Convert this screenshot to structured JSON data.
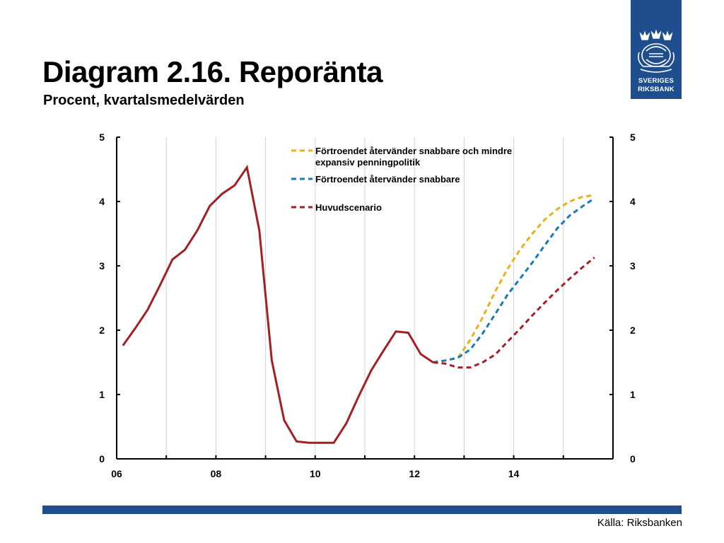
{
  "slide": {
    "title": "Diagram 2.16. Reporänta",
    "subtitle": "Procent, kvartalsmedelvärden",
    "source": "Källa: Riksbanken",
    "logo": {
      "line1": "SVERIGES",
      "line2": "RIKSBANK",
      "icon": "crown-seal-icon"
    }
  },
  "colors": {
    "brand_blue": "#1f4e8f",
    "series_main": "#a31f24",
    "series_fast": "#1a7ab5",
    "series_fast_expansive": "#e8b01a",
    "grid": "#d0d0d0"
  },
  "chart_data": {
    "type": "line",
    "title": "Diagram 2.16. Reporänta",
    "subtitle": "Procent, kvartalsmedelvärden",
    "xlabel": "",
    "ylabel": "",
    "x_range": [
      2006,
      2016
    ],
    "ylim": [
      0,
      5
    ],
    "y_ticks": [
      "0",
      "1",
      "2",
      "3",
      "4",
      "5"
    ],
    "right_y_ticks": [
      "0",
      "1",
      "2",
      "3",
      "4",
      "5"
    ],
    "x_ticks": [
      {
        "x": 2006,
        "label": "06"
      },
      {
        "x": 2008,
        "label": "08"
      },
      {
        "x": 2010,
        "label": "10"
      },
      {
        "x": 2012,
        "label": "12"
      },
      {
        "x": 2014,
        "label": "14"
      }
    ],
    "grid": "vertical",
    "legend_position": "top-center",
    "series": [
      {
        "name": "Förtroendet återvänder snabbare och mindre expansiv penningpolitik",
        "legend_lines": [
          "Förtroendet återvänder snabbare och mindre",
          "expansiv penningpolitik"
        ],
        "style": "dashed",
        "color_key": "series_fast_expansive",
        "points": [
          [
            2012.375,
            1.5
          ],
          [
            2012.625,
            1.53
          ],
          [
            2012.875,
            1.57
          ],
          [
            2013.125,
            1.85
          ],
          [
            2013.375,
            2.2
          ],
          [
            2013.625,
            2.6
          ],
          [
            2013.875,
            2.95
          ],
          [
            2014.125,
            3.25
          ],
          [
            2014.375,
            3.5
          ],
          [
            2014.625,
            3.72
          ],
          [
            2014.875,
            3.88
          ],
          [
            2015.125,
            4.0
          ],
          [
            2015.375,
            4.07
          ],
          [
            2015.625,
            4.1
          ]
        ]
      },
      {
        "name": "Förtroendet återvänder snabbare",
        "legend_lines": [
          "Förtroendet återvänder snabbare"
        ],
        "style": "dashed",
        "color_key": "series_fast",
        "points": [
          [
            2012.375,
            1.5
          ],
          [
            2012.625,
            1.53
          ],
          [
            2012.875,
            1.57
          ],
          [
            2013.125,
            1.7
          ],
          [
            2013.375,
            1.95
          ],
          [
            2013.625,
            2.25
          ],
          [
            2013.875,
            2.55
          ],
          [
            2014.125,
            2.8
          ],
          [
            2014.375,
            3.05
          ],
          [
            2014.625,
            3.32
          ],
          [
            2014.875,
            3.58
          ],
          [
            2015.125,
            3.78
          ],
          [
            2015.375,
            3.92
          ],
          [
            2015.625,
            4.05
          ]
        ]
      },
      {
        "name": "Huvudscenario",
        "legend_lines": [
          "Huvudscenario"
        ],
        "style": "solid-then-dashed",
        "color_key": "series_main",
        "points": [
          [
            2006.125,
            1.76
          ],
          [
            2006.375,
            2.03
          ],
          [
            2006.625,
            2.32
          ],
          [
            2006.875,
            2.7
          ],
          [
            2007.125,
            3.1
          ],
          [
            2007.375,
            3.25
          ],
          [
            2007.625,
            3.55
          ],
          [
            2007.875,
            3.93
          ],
          [
            2008.125,
            4.12
          ],
          [
            2008.375,
            4.25
          ],
          [
            2008.625,
            4.53
          ],
          [
            2008.875,
            3.55
          ],
          [
            2009.125,
            1.53
          ],
          [
            2009.375,
            0.6
          ],
          [
            2009.625,
            0.27
          ],
          [
            2009.875,
            0.25
          ],
          [
            2010.125,
            0.25
          ],
          [
            2010.375,
            0.25
          ],
          [
            2010.625,
            0.55
          ],
          [
            2010.875,
            0.97
          ],
          [
            2011.125,
            1.37
          ],
          [
            2011.375,
            1.68
          ],
          [
            2011.625,
            1.98
          ],
          [
            2011.875,
            1.96
          ],
          [
            2012.125,
            1.63
          ],
          [
            2012.375,
            1.5
          ]
        ],
        "forecast_points": [
          [
            2012.375,
            1.5
          ],
          [
            2012.625,
            1.48
          ],
          [
            2012.875,
            1.42
          ],
          [
            2013.125,
            1.42
          ],
          [
            2013.375,
            1.5
          ],
          [
            2013.625,
            1.62
          ],
          [
            2013.875,
            1.82
          ],
          [
            2014.125,
            2.02
          ],
          [
            2014.375,
            2.23
          ],
          [
            2014.625,
            2.43
          ],
          [
            2014.875,
            2.62
          ],
          [
            2015.125,
            2.8
          ],
          [
            2015.375,
            2.97
          ],
          [
            2015.625,
            3.13
          ]
        ]
      }
    ]
  }
}
